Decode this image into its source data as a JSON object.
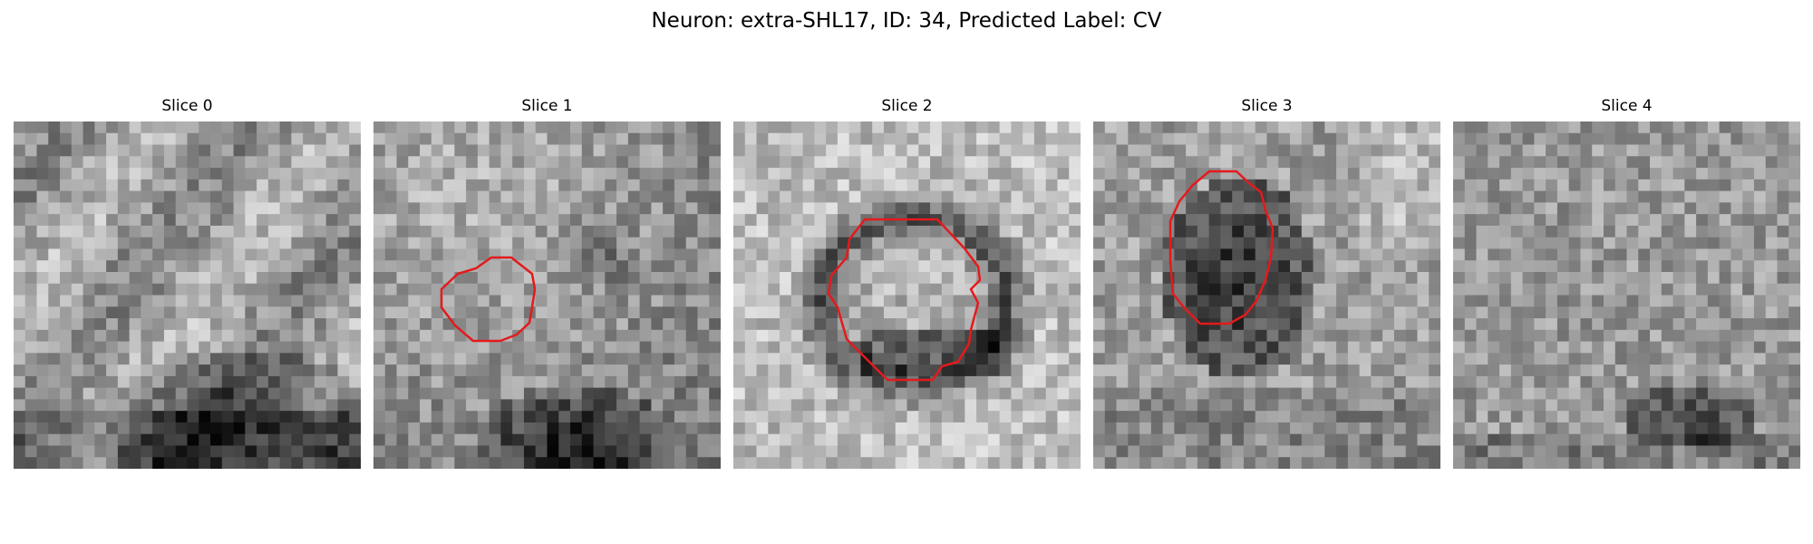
{
  "figure": {
    "title": "Neuron: extra-SHL17, ID: 34, Predicted Label: CV",
    "panels": [
      {
        "title": "Slice 0",
        "image": "grayscale EM crop, dark mottled region at bottom",
        "seed": 11
      },
      {
        "title": "Slice 1",
        "image": "grayscale EM crop, light upper region, dark blob at bottom",
        "seed": 23
      },
      {
        "title": "Slice 2",
        "image": "grayscale EM crop, dark ring around lighter center",
        "seed": 37
      },
      {
        "title": "Slice 3",
        "image": "grayscale EM crop, dark oval in center",
        "seed": 41
      },
      {
        "title": "Slice 4",
        "image": "grayscale EM crop, noisy texture, dark patch bottom-right",
        "seed": 53
      }
    ],
    "contour_color": "#e41a1c"
  }
}
